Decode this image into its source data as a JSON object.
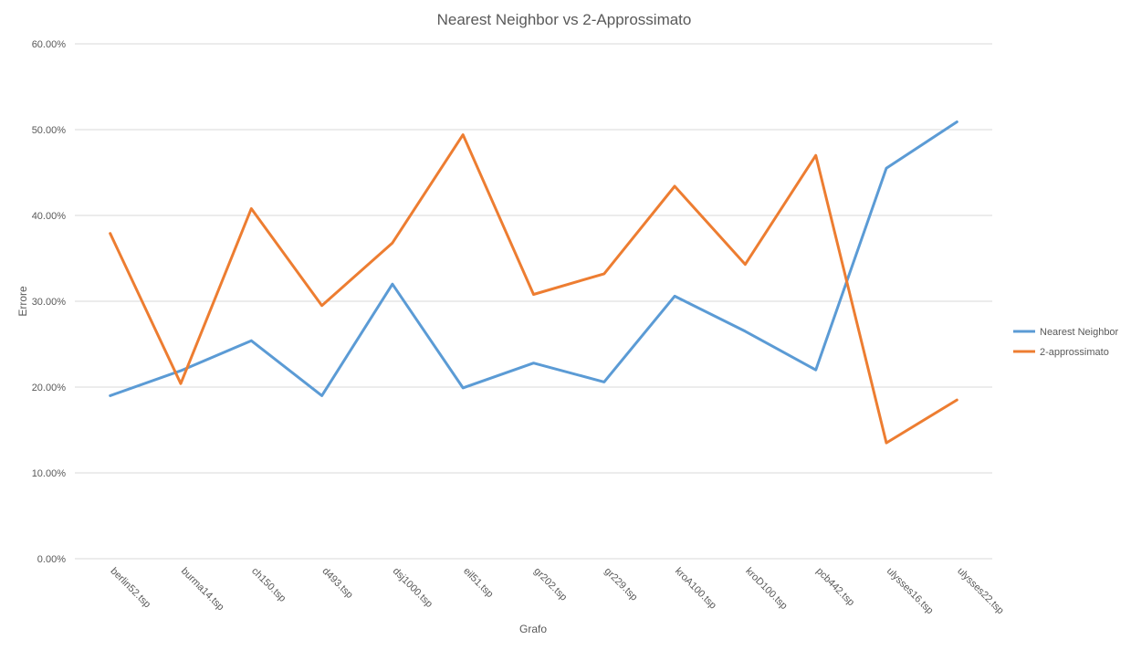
{
  "chart_data": {
    "type": "line",
    "title": "Nearest Neighbor vs 2-Approssimato",
    "xlabel": "Grafo",
    "ylabel": "Errore",
    "categories": [
      "berlin52.tsp",
      "burma14.tsp",
      "ch150.tsp",
      "d493.tsp",
      "dsj1000.tsp",
      "eil51.tsp",
      "gr202.tsp",
      "gr229.tsp",
      "kroA100.tsp",
      "kroD100.tsp",
      "pcb442.tsp",
      "ulysses16.tsp",
      "ulysses22.tsp"
    ],
    "ylim": [
      0,
      0.6
    ],
    "yticks": [
      0,
      0.1,
      0.2,
      0.3,
      0.4,
      0.5,
      0.6
    ],
    "ytick_labels": [
      "0.00%",
      "10.00%",
      "20.00%",
      "30.00%",
      "40.00%",
      "50.00%",
      "60.00%"
    ],
    "grid": true,
    "legend_position": "right",
    "series": [
      {
        "name": "Nearest Neighbor",
        "color": "#5B9BD5",
        "values": [
          0.19,
          0.219,
          0.254,
          0.19,
          0.32,
          0.199,
          0.228,
          0.206,
          0.306,
          0.265,
          0.22,
          0.455,
          0.509
        ]
      },
      {
        "name": "2-approssimato",
        "color": "#ED7D31",
        "values": [
          0.379,
          0.204,
          0.408,
          0.295,
          0.368,
          0.494,
          0.308,
          0.332,
          0.434,
          0.343,
          0.47,
          0.135,
          0.185
        ]
      }
    ]
  }
}
